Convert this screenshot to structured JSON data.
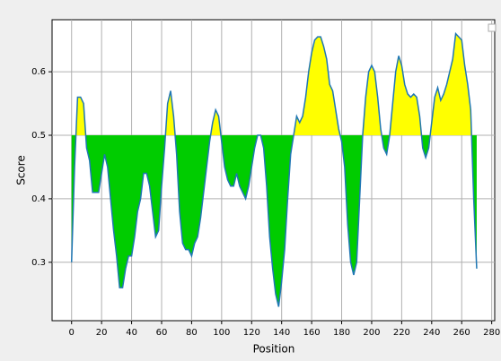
{
  "chart_data": {
    "type": "area-threshold",
    "xlabel": "Position",
    "ylabel": "Score",
    "x": [
      0,
      2,
      4,
      6,
      8,
      10,
      12,
      14,
      16,
      18,
      20,
      22,
      24,
      26,
      28,
      30,
      32,
      34,
      36,
      38,
      40,
      42,
      44,
      46,
      48,
      50,
      52,
      54,
      56,
      58,
      60,
      62,
      64,
      66,
      68,
      70,
      72,
      74,
      76,
      78,
      80,
      82,
      84,
      86,
      88,
      90,
      92,
      94,
      96,
      98,
      100,
      102,
      104,
      106,
      108,
      110,
      112,
      114,
      116,
      118,
      120,
      122,
      124,
      126,
      128,
      130,
      132,
      134,
      136,
      138,
      140,
      142,
      144,
      146,
      148,
      150,
      152,
      154,
      156,
      158,
      160,
      162,
      164,
      166,
      168,
      170,
      172,
      174,
      176,
      178,
      180,
      182,
      184,
      186,
      188,
      190,
      192,
      194,
      196,
      198,
      200,
      202,
      204,
      206,
      208,
      210,
      212,
      214,
      216,
      218,
      220,
      222,
      224,
      226,
      228,
      230,
      232,
      234,
      236,
      238,
      240,
      242,
      244,
      246,
      248,
      250,
      252,
      254,
      256,
      258,
      260,
      262,
      264,
      266,
      268,
      270
    ],
    "values": [
      0.3,
      0.45,
      0.56,
      0.56,
      0.55,
      0.48,
      0.46,
      0.41,
      0.41,
      0.41,
      0.44,
      0.47,
      0.45,
      0.4,
      0.35,
      0.31,
      0.26,
      0.26,
      0.29,
      0.31,
      0.31,
      0.34,
      0.38,
      0.4,
      0.44,
      0.44,
      0.42,
      0.38,
      0.34,
      0.35,
      0.42,
      0.48,
      0.55,
      0.57,
      0.53,
      0.47,
      0.38,
      0.33,
      0.32,
      0.32,
      0.31,
      0.33,
      0.34,
      0.37,
      0.41,
      0.45,
      0.49,
      0.52,
      0.54,
      0.53,
      0.49,
      0.45,
      0.43,
      0.42,
      0.42,
      0.44,
      0.42,
      0.41,
      0.4,
      0.42,
      0.45,
      0.48,
      0.5,
      0.5,
      0.48,
      0.42,
      0.34,
      0.29,
      0.25,
      0.23,
      0.27,
      0.32,
      0.4,
      0.47,
      0.5,
      0.53,
      0.52,
      0.53,
      0.56,
      0.6,
      0.63,
      0.65,
      0.655,
      0.655,
      0.64,
      0.62,
      0.58,
      0.57,
      0.54,
      0.51,
      0.49,
      0.45,
      0.36,
      0.3,
      0.28,
      0.3,
      0.4,
      0.5,
      0.56,
      0.6,
      0.61,
      0.6,
      0.56,
      0.51,
      0.48,
      0.47,
      0.5,
      0.55,
      0.6,
      0.625,
      0.61,
      0.58,
      0.565,
      0.56,
      0.565,
      0.56,
      0.53,
      0.48,
      0.465,
      0.48,
      0.52,
      0.56,
      0.575,
      0.555,
      0.565,
      0.58,
      0.6,
      0.62,
      0.66,
      0.655,
      0.65,
      0.61,
      0.58,
      0.54,
      0.4,
      0.29
    ],
    "threshold": 0.5,
    "color": "#1f77b4",
    "above_color": "#ffff00",
    "below_color": "#00cc00",
    "xlim": [
      -13,
      282
    ],
    "ylim": [
      0.208,
      0.682
    ],
    "xticks": [
      0,
      20,
      40,
      60,
      80,
      100,
      120,
      140,
      160,
      180,
      200,
      220,
      240,
      260,
      280
    ],
    "yticks": [
      0.3,
      0.4,
      0.5,
      0.6
    ],
    "grid": true
  }
}
